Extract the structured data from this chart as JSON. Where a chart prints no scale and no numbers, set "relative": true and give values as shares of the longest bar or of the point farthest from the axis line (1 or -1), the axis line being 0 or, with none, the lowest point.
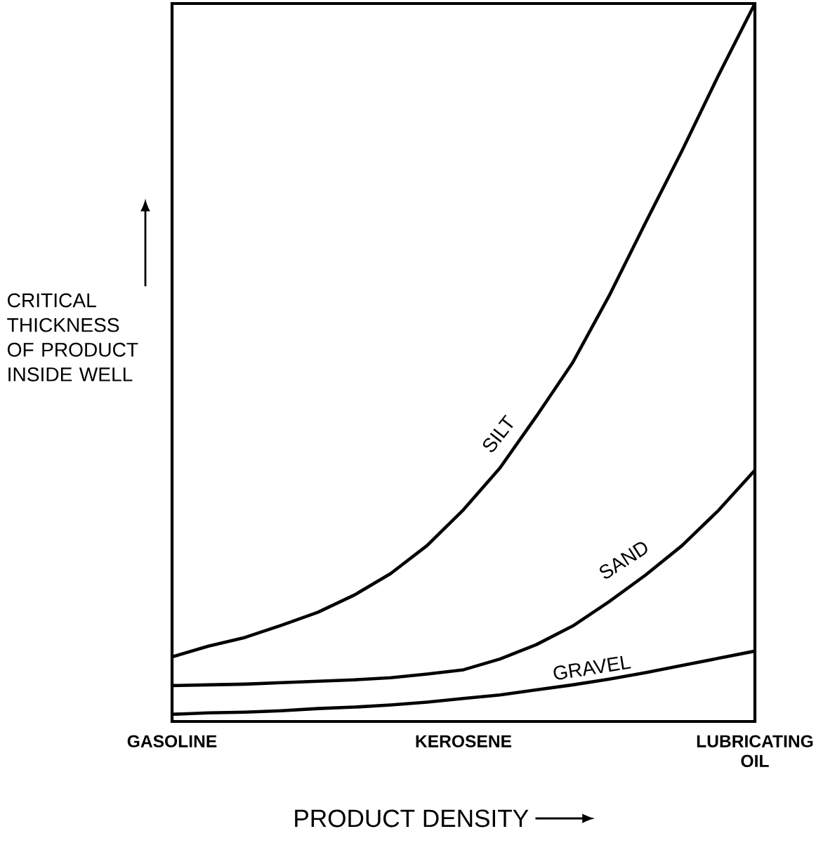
{
  "chart_data": {
    "type": "line",
    "relative": true,
    "xlabel": "PRODUCT DENSITY",
    "ylabel": "CRITICAL THICKNESS OF PRODUCT INSIDE WELL",
    "categories": [
      "GASOLINE",
      null,
      null,
      null,
      null,
      null,
      null,
      null,
      "KEROSENE",
      null,
      null,
      null,
      null,
      null,
      null,
      null,
      "LUBRICATING OIL"
    ],
    "series": [
      {
        "name": "SILT",
        "color": "#000000",
        "values": [
          0.09,
          0.105,
          0.117,
          0.134,
          0.152,
          0.176,
          0.206,
          0.245,
          0.295,
          0.353,
          0.425,
          0.5,
          0.593,
          0.695,
          0.795,
          0.9,
          1.0
        ]
      },
      {
        "name": "SAND",
        "color": "#000000",
        "values": [
          0.05,
          0.051,
          0.052,
          0.054,
          0.056,
          0.058,
          0.061,
          0.066,
          0.072,
          0.087,
          0.107,
          0.133,
          0.167,
          0.204,
          0.245,
          0.294,
          0.35
        ]
      },
      {
        "name": "GRAVEL",
        "color": "#000000",
        "values": [
          0.01,
          0.012,
          0.013,
          0.015,
          0.018,
          0.02,
          0.023,
          0.027,
          0.032,
          0.037,
          0.044,
          0.051,
          0.059,
          0.068,
          0.078,
          0.088,
          0.098
        ]
      }
    ]
  }
}
